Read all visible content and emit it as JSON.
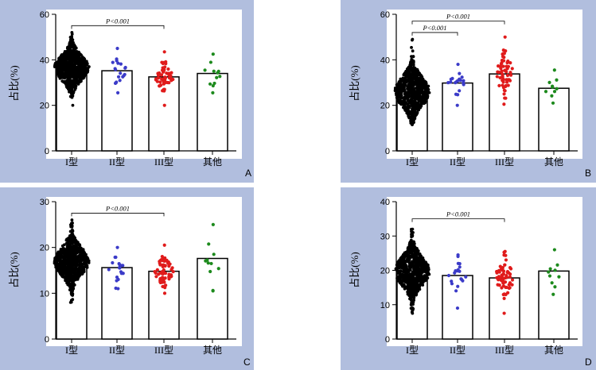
{
  "colors": {
    "panel_bg": "#b1bede",
    "type1": "#000000",
    "type2": "#3b3bc8",
    "type3": "#e01b1b",
    "other": "#1d8a1d"
  },
  "chart_data": [
    {
      "type": "bar",
      "panel_label": "A",
      "ylabel": "占比(%)",
      "ylim": [
        0,
        60
      ],
      "yticks": [
        0,
        20,
        40,
        60
      ],
      "categories": [
        "I型",
        "II型",
        "III型",
        "其他"
      ],
      "values": [
        36.5,
        35.2,
        32.5,
        34.0
      ],
      "points": [
        {
          "n": 700,
          "min": 20,
          "max": 52
        },
        {
          "n": 20,
          "min": 25.5,
          "max": 45
        },
        {
          "n": 60,
          "min": 20,
          "max": 43.5
        },
        {
          "n": 12,
          "min": 25.5,
          "max": 42.5
        }
      ],
      "comparisons": [
        {
          "from": 0,
          "to": 2,
          "label": "P<0.001",
          "y": 55
        }
      ]
    },
    {
      "type": "bar",
      "panel_label": "B",
      "ylabel": "占比(%)",
      "ylim": [
        0,
        60
      ],
      "yticks": [
        0,
        20,
        40,
        60
      ],
      "categories": [
        "I型",
        "II型",
        "III型",
        "其他"
      ],
      "values": [
        26.0,
        29.8,
        33.8,
        27.5
      ],
      "points": [
        {
          "n": 700,
          "min": 11.5,
          "max": 49
        },
        {
          "n": 20,
          "min": 20,
          "max": 38
        },
        {
          "n": 60,
          "min": 20.5,
          "max": 50
        },
        {
          "n": 10,
          "min": 21,
          "max": 35.5
        }
      ],
      "comparisons": [
        {
          "from": 0,
          "to": 2,
          "label": "P<0.001",
          "y": 57
        },
        {
          "from": 0,
          "to": 1,
          "label": "P<0.001",
          "y": 52
        }
      ]
    },
    {
      "type": "bar",
      "panel_label": "C",
      "ylabel": "占比(%)",
      "ylim": [
        0,
        30
      ],
      "yticks": [
        0,
        10,
        20,
        30
      ],
      "categories": [
        "I型",
        "II型",
        "III型",
        "其他"
      ],
      "values": [
        17.0,
        15.6,
        14.8,
        17.6
      ],
      "points": [
        {
          "n": 700,
          "min": 8,
          "max": 26
        },
        {
          "n": 20,
          "min": 11,
          "max": 20
        },
        {
          "n": 60,
          "min": 10,
          "max": 20.5
        },
        {
          "n": 11,
          "min": 10.5,
          "max": 25
        }
      ],
      "comparisons": [
        {
          "from": 0,
          "to": 2,
          "label": "P<0.001",
          "y": 27.5
        }
      ]
    },
    {
      "type": "bar",
      "panel_label": "D",
      "ylabel": "占比(%)",
      "ylim": [
        0,
        40
      ],
      "yticks": [
        0,
        10,
        20,
        30,
        40
      ],
      "categories": [
        "I型",
        "II型",
        "III型",
        "其他"
      ],
      "values": [
        19.8,
        18.5,
        17.8,
        19.8
      ],
      "points": [
        {
          "n": 700,
          "min": 7.5,
          "max": 32
        },
        {
          "n": 20,
          "min": 9,
          "max": 24.5
        },
        {
          "n": 60,
          "min": 7.5,
          "max": 25.5
        },
        {
          "n": 10,
          "min": 13,
          "max": 26
        }
      ],
      "comparisons": [
        {
          "from": 0,
          "to": 2,
          "label": "P<0.001",
          "y": 35
        }
      ]
    }
  ]
}
